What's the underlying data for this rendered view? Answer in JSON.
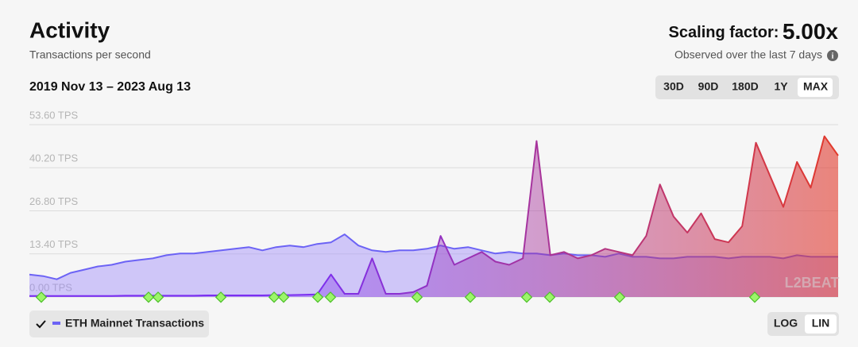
{
  "header": {
    "title": "Activity",
    "subtitle": "Transactions per second",
    "date_range": "2019 Nov 13 – 2023 Aug 13",
    "scaling_label": "Scaling factor:",
    "scaling_value": "5.00x",
    "observed_note": "Observed over the last 7 days",
    "watermark": "L2BEAT"
  },
  "controls": {
    "range_buttons": [
      "30D",
      "90D",
      "180D",
      "1Y",
      "MAX"
    ],
    "selected_range": "MAX",
    "scale_buttons": [
      "LOG",
      "LIN"
    ],
    "selected_scale": "LIN"
  },
  "chart_data": {
    "type": "area",
    "log_scale": false,
    "grid": true,
    "ylim": [
      0,
      53.6
    ],
    "yticks": [
      {
        "value": 0,
        "label": "0.00 TPS"
      },
      {
        "value": 13.4,
        "label": "13.40 TPS"
      },
      {
        "value": 26.8,
        "label": "26.80 TPS"
      },
      {
        "value": 40.2,
        "label": "40.20 TPS"
      },
      {
        "value": 53.6,
        "label": "53.60 TPS"
      }
    ],
    "series": [
      {
        "name": "ETH Mainnet Transactions",
        "color": "#6c63f5",
        "values": [
          7,
          6.5,
          5.5,
          7.5,
          8.5,
          9.5,
          10,
          11,
          11.5,
          12,
          13,
          13.5,
          13.5,
          14,
          14.5,
          15,
          15.5,
          14.5,
          15.5,
          16,
          15.5,
          16.5,
          17,
          19.5,
          16,
          14.5,
          14,
          14.5,
          14.5,
          15,
          16,
          15,
          15.5,
          14.5,
          13.5,
          14,
          13.5,
          13.5,
          13,
          13.5,
          13,
          13,
          12.5,
          13.5,
          12.5,
          12.5,
          12,
          12,
          12.5,
          12.5,
          12.5,
          12,
          12.5,
          12.5,
          12.5,
          12,
          13,
          12.5,
          12.5,
          12.5
        ]
      },
      {
        "color": "#7b2ff0",
        "color_end": "#e2392a",
        "values": [
          0.3,
          0.3,
          0.3,
          0.3,
          0.3,
          0.3,
          0.3,
          0.4,
          0.4,
          0.4,
          0.4,
          0.4,
          0.4,
          0.5,
          0.5,
          0.5,
          0.5,
          0.5,
          0.6,
          0.6,
          0.7,
          0.8,
          7,
          1,
          1,
          12,
          1,
          1,
          1.5,
          3.5,
          19,
          10,
          12,
          14,
          11,
          10,
          12,
          48.5,
          13,
          14,
          12,
          13,
          15,
          14,
          13,
          19,
          35,
          25,
          20,
          26,
          18,
          17,
          22,
          48,
          38,
          28,
          42,
          34,
          50,
          44
        ]
      }
    ]
  }
}
